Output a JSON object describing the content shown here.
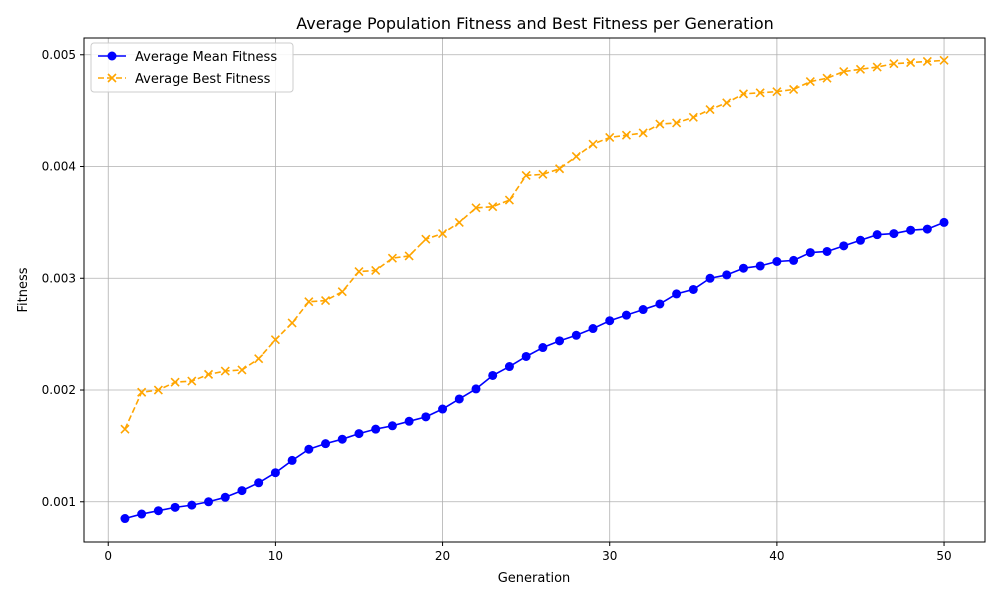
{
  "chart_data": {
    "type": "line",
    "title": "Average Population Fitness and Best Fitness per Generation",
    "xlabel": "Generation",
    "ylabel": "Fitness",
    "xlim": [
      -1.45,
      52.45
    ],
    "ylim": [
      0.00064,
      0.00515
    ],
    "xticks": [
      0,
      10,
      20,
      30,
      40,
      50
    ],
    "yticks": [
      0.001,
      0.002,
      0.003,
      0.004,
      0.005
    ],
    "xtick_labels": [
      "0",
      "10",
      "20",
      "30",
      "40",
      "50"
    ],
    "ytick_labels": [
      "0.001",
      "0.002",
      "0.003",
      "0.004",
      "0.005"
    ],
    "grid": true,
    "legend_position": "upper left",
    "x": [
      1,
      2,
      3,
      4,
      5,
      6,
      7,
      8,
      9,
      10,
      11,
      12,
      13,
      14,
      15,
      16,
      17,
      18,
      19,
      20,
      21,
      22,
      23,
      24,
      25,
      26,
      27,
      28,
      29,
      30,
      31,
      32,
      33,
      34,
      35,
      36,
      37,
      38,
      39,
      40,
      41,
      42,
      43,
      44,
      45,
      46,
      47,
      48,
      49,
      50
    ],
    "series": [
      {
        "name": "Average Mean Fitness",
        "color": "#0000ff",
        "linestyle": "solid",
        "marker": "circle",
        "values": [
          0.00085,
          0.00089,
          0.00092,
          0.00095,
          0.00097,
          0.001,
          0.00104,
          0.0011,
          0.00117,
          0.00126,
          0.00137,
          0.00147,
          0.00152,
          0.00156,
          0.00161,
          0.00165,
          0.00168,
          0.00172,
          0.00176,
          0.00183,
          0.00192,
          0.00201,
          0.00213,
          0.00221,
          0.0023,
          0.00238,
          0.00244,
          0.00249,
          0.00255,
          0.00262,
          0.00267,
          0.00272,
          0.00277,
          0.00286,
          0.0029,
          0.003,
          0.00303,
          0.00309,
          0.00311,
          0.00315,
          0.00316,
          0.00323,
          0.00324,
          0.00329,
          0.00334,
          0.00339,
          0.0034,
          0.00343,
          0.00344,
          0.0035
        ]
      },
      {
        "name": "Average Best Fitness",
        "color": "#ffa500",
        "linestyle": "dashed",
        "marker": "x",
        "values": [
          0.00165,
          0.00198,
          0.002,
          0.00207,
          0.00208,
          0.00214,
          0.00217,
          0.00218,
          0.00228,
          0.00245,
          0.0026,
          0.00279,
          0.0028,
          0.00288,
          0.00306,
          0.00307,
          0.00318,
          0.0032,
          0.00335,
          0.0034,
          0.0035,
          0.00363,
          0.00364,
          0.0037,
          0.00392,
          0.00393,
          0.00398,
          0.00409,
          0.0042,
          0.00426,
          0.00428,
          0.0043,
          0.00438,
          0.00439,
          0.00444,
          0.00451,
          0.00457,
          0.00465,
          0.00466,
          0.00467,
          0.00469,
          0.00476,
          0.00479,
          0.00485,
          0.00487,
          0.00489,
          0.00492,
          0.00493,
          0.00494,
          0.00495
        ]
      }
    ]
  }
}
